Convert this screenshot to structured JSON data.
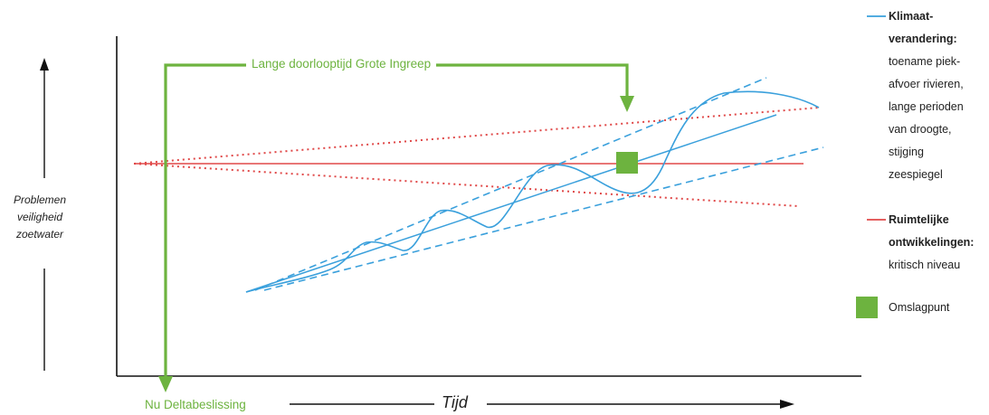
{
  "y_label": [
    "Problemen",
    "veiligheid",
    "zoetwater"
  ],
  "x_label": "Tijd",
  "top_label": "Lange doorlooptijd Grote Ingreep",
  "bottom_label": "Nu Deltabeslissing",
  "legend": {
    "climate": {
      "title": [
        "Klimaat-",
        "verandering:"
      ],
      "lines": [
        "toename piek-",
        "afvoer rivieren,",
        "lange perioden",
        "van droogte,",
        "stijging",
        "zeespiegel"
      ],
      "color": "#3aa0dc"
    },
    "spatial": {
      "title": [
        "Ruimtelijke",
        "ontwikkelingen:"
      ],
      "lines": [
        "kritisch niveau"
      ],
      "color": "#e04848"
    },
    "tipping": {
      "title": "Omslagpunt",
      "color": "#6db33f"
    }
  },
  "colors": {
    "green": "#6db33f",
    "blue": "#3aa0dc",
    "red": "#e04848",
    "axis": "#111111"
  }
}
